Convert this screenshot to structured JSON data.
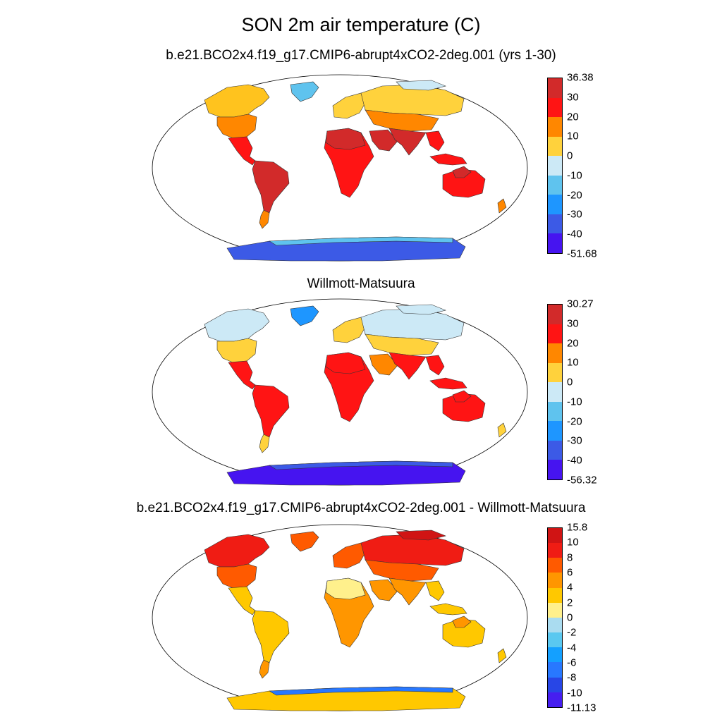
{
  "figure_title": "SON 2m air temperature (C)",
  "panels": [
    {
      "id": "model",
      "title": "b.e21.BCO2x4.f19_g17.CMIP6-abrupt4xCO2-2deg.001 (yrs 1-30)",
      "colorbar": {
        "labels": [
          "36.38",
          "30",
          "20",
          "10",
          "0",
          "-10",
          "-20",
          "-30",
          "-40",
          "-51.68"
        ],
        "colors": [
          "#d22a2a",
          "#ff1414",
          "#ff8700",
          "#ffd23c",
          "#cce9f6",
          "#5fc3ee",
          "#1e96ff",
          "#3c5ae6",
          "#4614f0"
        ]
      },
      "regions": {
        "north_america": "#ffc31e",
        "greenland": "#5fc3ee",
        "usa": "#ff8700",
        "central_america": "#ff1414",
        "south_america": "#d22a2a",
        "patagonia": "#ff8700",
        "europe": "#ffd23c",
        "north_asia": "#ffd23c",
        "siberia_north": "#cce9f6",
        "central_asia": "#ff8700",
        "africa": "#ff1414",
        "sahara": "#d22a2a",
        "middle_east": "#d22a2a",
        "south_asia": "#d22a2a",
        "southeast_asia": "#ff1414",
        "indonesia": "#ff1414",
        "australia": "#ff1414",
        "australia_north": "#d22a2a",
        "new_zealand": "#ff8700",
        "antarctica": "#3c5ae6",
        "antarctica_edge": "#5fc3ee"
      }
    },
    {
      "id": "obs",
      "title": "Willmott-Matsuura",
      "colorbar": {
        "labels": [
          "30.27",
          "30",
          "20",
          "10",
          "0",
          "-10",
          "-20",
          "-30",
          "-40",
          "-56.32"
        ],
        "colors": [
          "#d22a2a",
          "#ff1414",
          "#ff8700",
          "#ffd23c",
          "#cce9f6",
          "#5fc3ee",
          "#1e96ff",
          "#3c5ae6",
          "#4614f0"
        ]
      },
      "regions": {
        "north_america": "#cce9f6",
        "greenland": "#1e96ff",
        "usa": "#ffd23c",
        "central_america": "#ff1414",
        "south_america": "#ff1414",
        "patagonia": "#ffd23c",
        "europe": "#ffd23c",
        "north_asia": "#cce9f6",
        "siberia_north": "#cce9f6",
        "central_asia": "#ffd23c",
        "africa": "#ff1414",
        "sahara": "#ff1414",
        "middle_east": "#ff8700",
        "south_asia": "#ff1414",
        "southeast_asia": "#ff1414",
        "indonesia": "#ff1414",
        "australia": "#ff1414",
        "australia_north": "#ff1414",
        "new_zealand": "#ffd23c",
        "antarctica": "#4614f0",
        "antarctica_edge": "#3c5ae6"
      }
    },
    {
      "id": "diff",
      "title": "b.e21.BCO2x4.f19_g17.CMIP6-abrupt4xCO2-2deg.001 - Willmott-Matsuura",
      "colorbar": {
        "labels": [
          "15.8",
          "10",
          "8",
          "6",
          "4",
          "2",
          "0",
          "-2",
          "-4",
          "-6",
          "-8",
          "-10",
          "-11.13"
        ],
        "colors": [
          "#d01414",
          "#f01c14",
          "#ff5a00",
          "#ff9600",
          "#ffc800",
          "#fff08c",
          "#aadcf0",
          "#5ac8f0",
          "#14a0ff",
          "#2878ff",
          "#2846e6",
          "#461ef0"
        ]
      },
      "regions": {
        "north_america": "#f01c14",
        "greenland": "#ff5a00",
        "usa": "#ff5a00",
        "central_america": "#ffc800",
        "south_america": "#ffc800",
        "patagonia": "#ff9600",
        "europe": "#ff5a00",
        "north_asia": "#f01c14",
        "siberia_north": "#d01414",
        "central_asia": "#ff5a00",
        "africa": "#ff9600",
        "sahara": "#fff08c",
        "middle_east": "#ff9600",
        "south_asia": "#ff9600",
        "southeast_asia": "#ffc800",
        "indonesia": "#ffc800",
        "australia": "#ffc800",
        "australia_north": "#ff9600",
        "new_zealand": "#ffc800",
        "antarctica": "#ffc800",
        "antarctica_edge": "#2878ff"
      }
    }
  ]
}
